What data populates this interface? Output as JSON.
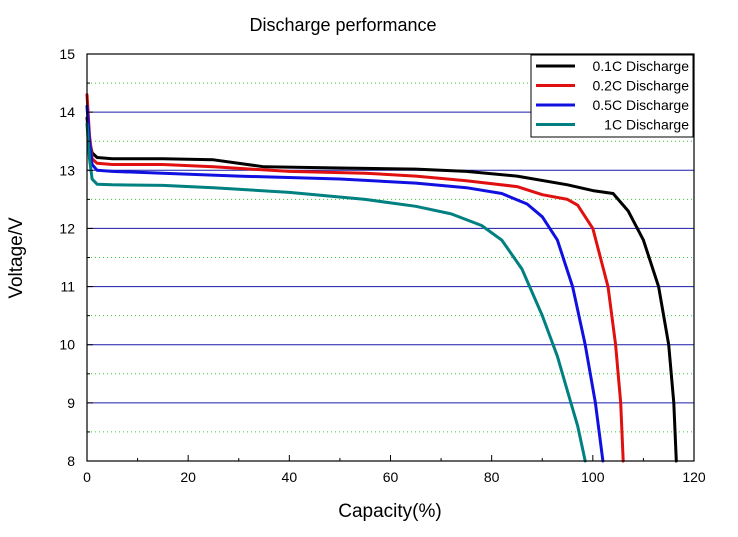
{
  "chart_data": {
    "type": "line",
    "title": "Discharge performance",
    "xlabel": "Capacity(%)",
    "ylabel": "Voltage/V",
    "xlim": [
      0,
      120
    ],
    "ylim": [
      8,
      15
    ],
    "xticks": [
      0,
      20,
      40,
      60,
      80,
      100,
      120
    ],
    "yticks": [
      8,
      9,
      10,
      11,
      12,
      13,
      14,
      15
    ],
    "grid": {
      "major_y": true,
      "major_y_color": "#1a1aa8",
      "minor_y": true,
      "minor_y_color": "#33cc33",
      "minor_y_style": "dotted"
    },
    "legend_position": "top-right",
    "series": [
      {
        "name": "0.1C Discharge",
        "color": "#000000",
        "points": [
          [
            0,
            13.9
          ],
          [
            0.5,
            13.5
          ],
          [
            1,
            13.3
          ],
          [
            2,
            13.22
          ],
          [
            5,
            13.2
          ],
          [
            15,
            13.2
          ],
          [
            25,
            13.18
          ],
          [
            35,
            13.06
          ],
          [
            50,
            13.04
          ],
          [
            65,
            13.02
          ],
          [
            75,
            12.98
          ],
          [
            85,
            12.9
          ],
          [
            95,
            12.75
          ],
          [
            100,
            12.65
          ],
          [
            104,
            12.6
          ],
          [
            107,
            12.3
          ],
          [
            110,
            11.8
          ],
          [
            113,
            11.0
          ],
          [
            115,
            10.0
          ],
          [
            116,
            9.0
          ],
          [
            116.5,
            8.0
          ]
        ]
      },
      {
        "name": "0.2C Discharge",
        "color": "#e01010",
        "points": [
          [
            0,
            14.3
          ],
          [
            0.5,
            13.6
          ],
          [
            1,
            13.2
          ],
          [
            2,
            13.12
          ],
          [
            5,
            13.1
          ],
          [
            15,
            13.1
          ],
          [
            25,
            13.06
          ],
          [
            40,
            12.98
          ],
          [
            55,
            12.95
          ],
          [
            65,
            12.9
          ],
          [
            75,
            12.82
          ],
          [
            85,
            12.72
          ],
          [
            90,
            12.58
          ],
          [
            95,
            12.5
          ],
          [
            97,
            12.4
          ],
          [
            100,
            12.0
          ],
          [
            103,
            11.0
          ],
          [
            104.5,
            10.0
          ],
          [
            105.5,
            9.0
          ],
          [
            106,
            8.0
          ]
        ]
      },
      {
        "name": "0.5C Discharge",
        "color": "#1010e0",
        "points": [
          [
            0,
            14.1
          ],
          [
            0.5,
            13.5
          ],
          [
            1,
            13.1
          ],
          [
            2,
            13.0
          ],
          [
            5,
            12.98
          ],
          [
            15,
            12.95
          ],
          [
            30,
            12.9
          ],
          [
            50,
            12.85
          ],
          [
            65,
            12.78
          ],
          [
            75,
            12.7
          ],
          [
            82,
            12.6
          ],
          [
            87,
            12.42
          ],
          [
            90,
            12.2
          ],
          [
            93,
            11.8
          ],
          [
            96,
            11.0
          ],
          [
            98.5,
            10.0
          ],
          [
            100.5,
            9.0
          ],
          [
            102,
            8.0
          ]
        ]
      },
      {
        "name": "1C Discharge",
        "color": "#008080",
        "points": [
          [
            0,
            13.8
          ],
          [
            0.5,
            13.2
          ],
          [
            1,
            12.85
          ],
          [
            2,
            12.76
          ],
          [
            5,
            12.75
          ],
          [
            15,
            12.74
          ],
          [
            25,
            12.7
          ],
          [
            40,
            12.62
          ],
          [
            55,
            12.5
          ],
          [
            65,
            12.38
          ],
          [
            72,
            12.25
          ],
          [
            78,
            12.05
          ],
          [
            82,
            11.8
          ],
          [
            86,
            11.3
          ],
          [
            90,
            10.5
          ],
          [
            93,
            9.8
          ],
          [
            95,
            9.2
          ],
          [
            97,
            8.6
          ],
          [
            98.5,
            8.0
          ]
        ]
      }
    ]
  }
}
